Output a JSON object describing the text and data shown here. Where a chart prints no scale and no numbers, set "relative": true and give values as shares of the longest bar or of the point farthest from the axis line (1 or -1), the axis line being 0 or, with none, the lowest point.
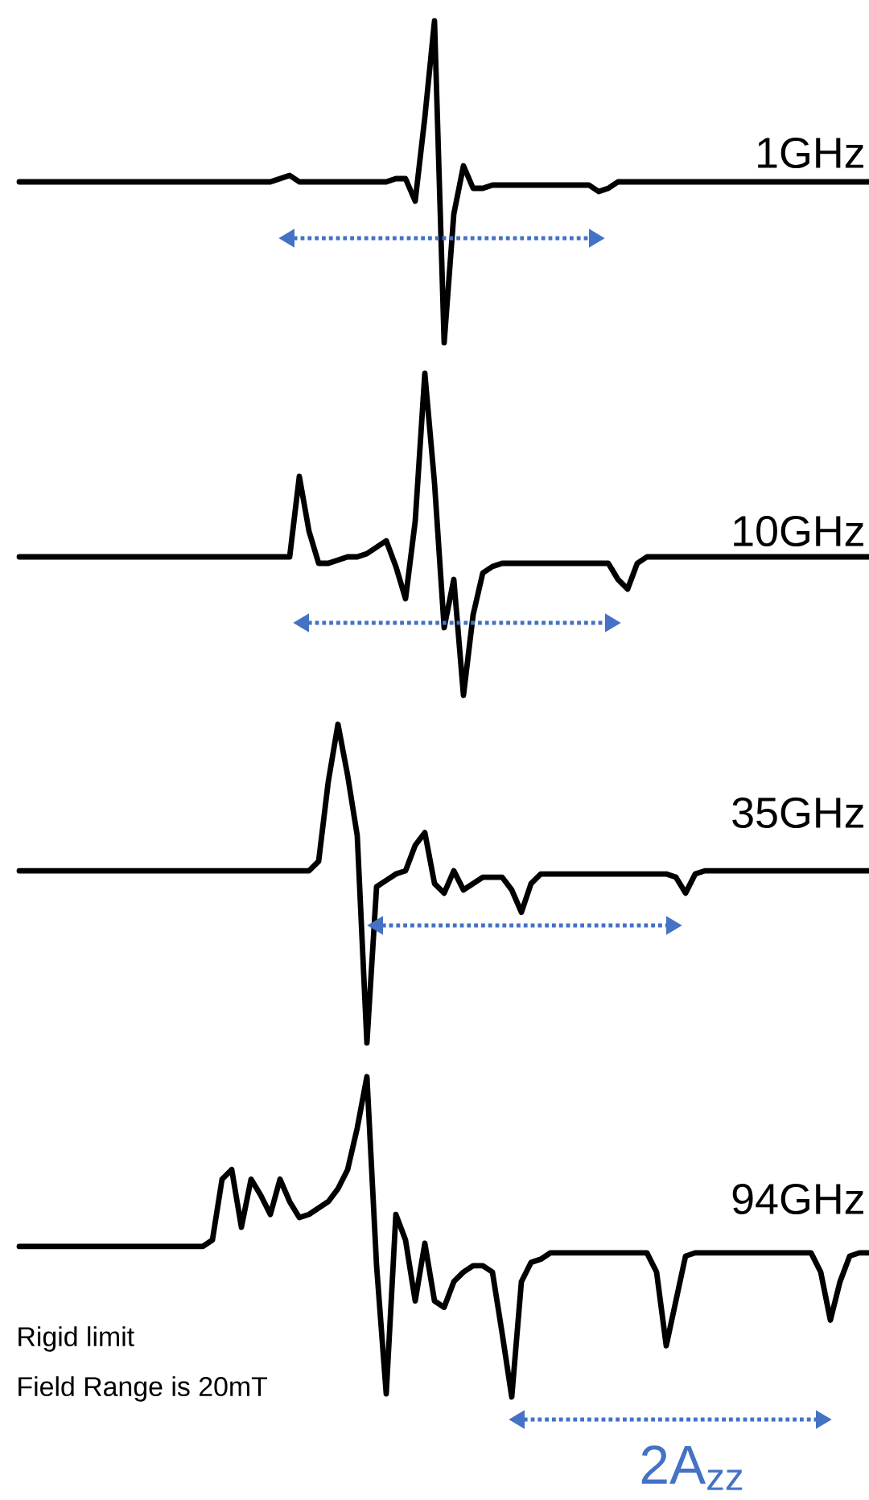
{
  "chart_data": [
    {
      "type": "line",
      "relative": true,
      "categories": [
        null,
        null,
        null,
        null,
        null,
        null,
        null,
        null,
        null,
        null,
        null,
        null,
        null,
        null,
        null,
        null,
        null,
        null,
        null,
        null,
        null,
        null,
        null,
        null,
        null,
        null,
        null,
        null,
        null,
        null,
        null,
        null,
        null,
        null,
        null,
        null,
        null,
        null,
        null,
        null,
        null,
        null,
        null,
        null,
        null,
        null,
        null,
        null,
        null,
        null,
        null,
        null,
        null,
        null,
        null,
        null,
        null,
        null,
        null,
        null,
        null,
        null,
        null,
        null,
        null,
        null,
        null,
        null,
        null,
        null,
        null,
        null,
        null,
        null,
        null,
        null,
        null,
        null,
        null,
        null,
        null,
        null,
        null,
        null,
        null,
        null,
        null,
        null,
        null
      ],
      "series": [
        {
          "name": "1GHz",
          "color": "#000000",
          "values": [
            0.5,
            0.5,
            0.5,
            0.5,
            0.5,
            0.5,
            0.5,
            0.5,
            0.5,
            0.5,
            0.5,
            0.5,
            0.5,
            0.5,
            0.5,
            0.5,
            0.5,
            0.5,
            0.5,
            0.5,
            0.5,
            0.5,
            0.5,
            0.5,
            0.5,
            0.5,
            0.5,
            0.51,
            0.52,
            0.5,
            0.5,
            0.5,
            0.5,
            0.5,
            0.5,
            0.5,
            0.5,
            0.5,
            0.5,
            0.51,
            0.51,
            0.44,
            0.7,
            1.0,
            0,
            0.4,
            0.55,
            0.48,
            0.48,
            0.49,
            0.49,
            0.49,
            0.49,
            0.49,
            0.49,
            0.49,
            0.49,
            0.49,
            0.49,
            0.49,
            0.47,
            0.48,
            0.5,
            0.5,
            0.5,
            0.5,
            0.5,
            0.5,
            0.5,
            0.5,
            0.5,
            0.5,
            0.5,
            0.5,
            0.5,
            0.5,
            0.5,
            0.5,
            0.5,
            0.5,
            0.5,
            0.5,
            0.5,
            0.5,
            0.5,
            0.5,
            0.5,
            0.5,
            0.5
          ]
        }
      ]
    },
    {
      "type": "line",
      "relative": true,
      "categories": [
        null,
        null,
        null,
        null,
        null,
        null,
        null,
        null,
        null,
        null,
        null,
        null,
        null,
        null,
        null,
        null,
        null,
        null,
        null,
        null,
        null,
        null,
        null,
        null,
        null,
        null,
        null,
        null,
        null,
        null,
        null,
        null,
        null,
        null,
        null,
        null,
        null,
        null,
        null,
        null,
        null,
        null,
        null,
        null,
        null,
        null,
        null,
        null,
        null,
        null,
        null,
        null,
        null,
        null,
        null,
        null,
        null,
        null,
        null,
        null,
        null,
        null,
        null,
        null,
        null,
        null,
        null,
        null,
        null,
        null,
        null,
        null,
        null,
        null,
        null,
        null,
        null,
        null,
        null,
        null,
        null,
        null,
        null,
        null,
        null,
        null,
        null,
        null,
        null
      ],
      "series": [
        {
          "name": "10GHz",
          "color": "#000000",
          "values": [
            0.43,
            0.43,
            0.43,
            0.43,
            0.43,
            0.43,
            0.43,
            0.43,
            0.43,
            0.43,
            0.43,
            0.43,
            0.43,
            0.43,
            0.43,
            0.43,
            0.43,
            0.43,
            0.43,
            0.43,
            0.43,
            0.43,
            0.43,
            0.43,
            0.43,
            0.43,
            0.43,
            0.43,
            0.43,
            0.68,
            0.51,
            0.41,
            0.41,
            0.42,
            0.43,
            0.43,
            0.44,
            0.46,
            0.48,
            0.4,
            0.3,
            0.54,
            1.0,
            0.66,
            0.21,
            0.36,
            0,
            0.25,
            0.38,
            0.4,
            0.41,
            0.41,
            0.41,
            0.41,
            0.41,
            0.41,
            0.41,
            0.41,
            0.41,
            0.41,
            0.41,
            0.41,
            0.36,
            0.33,
            0.41,
            0.43,
            0.43,
            0.43,
            0.43,
            0.43,
            0.43,
            0.43,
            0.43,
            0.43,
            0.43,
            0.43,
            0.43,
            0.43,
            0.43,
            0.43,
            0.43,
            0.43,
            0.43,
            0.43,
            0.43,
            0.43,
            0.43,
            0.43,
            0.43
          ]
        }
      ]
    },
    {
      "type": "line",
      "relative": true,
      "categories": [
        null,
        null,
        null,
        null,
        null,
        null,
        null,
        null,
        null,
        null,
        null,
        null,
        null,
        null,
        null,
        null,
        null,
        null,
        null,
        null,
        null,
        null,
        null,
        null,
        null,
        null,
        null,
        null,
        null,
        null,
        null,
        null,
        null,
        null,
        null,
        null,
        null,
        null,
        null,
        null,
        null,
        null,
        null,
        null,
        null,
        null,
        null,
        null,
        null,
        null,
        null,
        null,
        null,
        null,
        null,
        null,
        null,
        null,
        null,
        null,
        null,
        null,
        null,
        null,
        null,
        null,
        null,
        null,
        null,
        null,
        null,
        null,
        null,
        null,
        null,
        null,
        null,
        null,
        null,
        null,
        null,
        null,
        null,
        null,
        null,
        null,
        null,
        null,
        null
      ],
      "series": [
        {
          "name": "35GHz",
          "color": "#000000",
          "values": [
            0.54,
            0.54,
            0.54,
            0.54,
            0.54,
            0.54,
            0.54,
            0.54,
            0.54,
            0.54,
            0.54,
            0.54,
            0.54,
            0.54,
            0.54,
            0.54,
            0.54,
            0.54,
            0.54,
            0.54,
            0.54,
            0.54,
            0.54,
            0.54,
            0.54,
            0.54,
            0.54,
            0.54,
            0.54,
            0.54,
            0.54,
            0.57,
            0.82,
            1.0,
            0.84,
            0.65,
            0,
            0.49,
            0.51,
            0.53,
            0.54,
            0.62,
            0.66,
            0.5,
            0.47,
            0.54,
            0.48,
            0.5,
            0.52,
            0.52,
            0.52,
            0.48,
            0.41,
            0.5,
            0.53,
            0.53,
            0.53,
            0.53,
            0.53,
            0.53,
            0.53,
            0.53,
            0.53,
            0.53,
            0.53,
            0.53,
            0.53,
            0.53,
            0.52,
            0.47,
            0.53,
            0.54,
            0.54,
            0.54,
            0.54,
            0.54,
            0.54,
            0.54,
            0.54,
            0.54,
            0.54,
            0.54,
            0.54,
            0.54,
            0.54,
            0.54,
            0.54,
            0.54,
            0.54
          ]
        }
      ]
    },
    {
      "type": "line",
      "relative": true,
      "categories": [
        null,
        null,
        null,
        null,
        null,
        null,
        null,
        null,
        null,
        null,
        null,
        null,
        null,
        null,
        null,
        null,
        null,
        null,
        null,
        null,
        null,
        null,
        null,
        null,
        null,
        null,
        null,
        null,
        null,
        null,
        null,
        null,
        null,
        null,
        null,
        null,
        null,
        null,
        null,
        null,
        null,
        null,
        null,
        null,
        null,
        null,
        null,
        null,
        null,
        null,
        null,
        null,
        null,
        null,
        null,
        null,
        null,
        null,
        null,
        null,
        null,
        null,
        null,
        null,
        null,
        null,
        null,
        null,
        null,
        null,
        null,
        null,
        null,
        null,
        null,
        null,
        null,
        null,
        null,
        null,
        null,
        null,
        null,
        null,
        null,
        null,
        null,
        null,
        null
      ],
      "series": [
        {
          "name": "94GHz",
          "color": "#000000",
          "values": [
            0.47,
            0.47,
            0.47,
            0.47,
            0.47,
            0.47,
            0.47,
            0.47,
            0.47,
            0.47,
            0.47,
            0.47,
            0.47,
            0.47,
            0.47,
            0.47,
            0.47,
            0.47,
            0.47,
            0.47,
            0.49,
            0.68,
            0.71,
            0.53,
            0.68,
            0.63,
            0.57,
            0.68,
            0.61,
            0.56,
            0.57,
            0.59,
            0.61,
            0.65,
            0.71,
            0.84,
            1.0,
            0.41,
            0.01,
            0.57,
            0.49,
            0.3,
            0.48,
            0.3,
            0.28,
            0.36,
            0.39,
            0.41,
            0.41,
            0.39,
            0.2,
            0,
            0.36,
            0.42,
            0.43,
            0.45,
            0.45,
            0.45,
            0.45,
            0.45,
            0.45,
            0.45,
            0.45,
            0.45,
            0.45,
            0.45,
            0.39,
            0.16,
            0.3,
            0.44,
            0.45,
            0.45,
            0.45,
            0.45,
            0.45,
            0.45,
            0.45,
            0.45,
            0.45,
            0.45,
            0.45,
            0.45,
            0.45,
            0.39,
            0.24,
            0.36,
            0.44,
            0.45,
            0.45
          ]
        }
      ],
      "annotations": [
        "Rigid limit",
        "Field Range is 20mT",
        "2A$_{zz}$"
      ]
    }
  ]
}
